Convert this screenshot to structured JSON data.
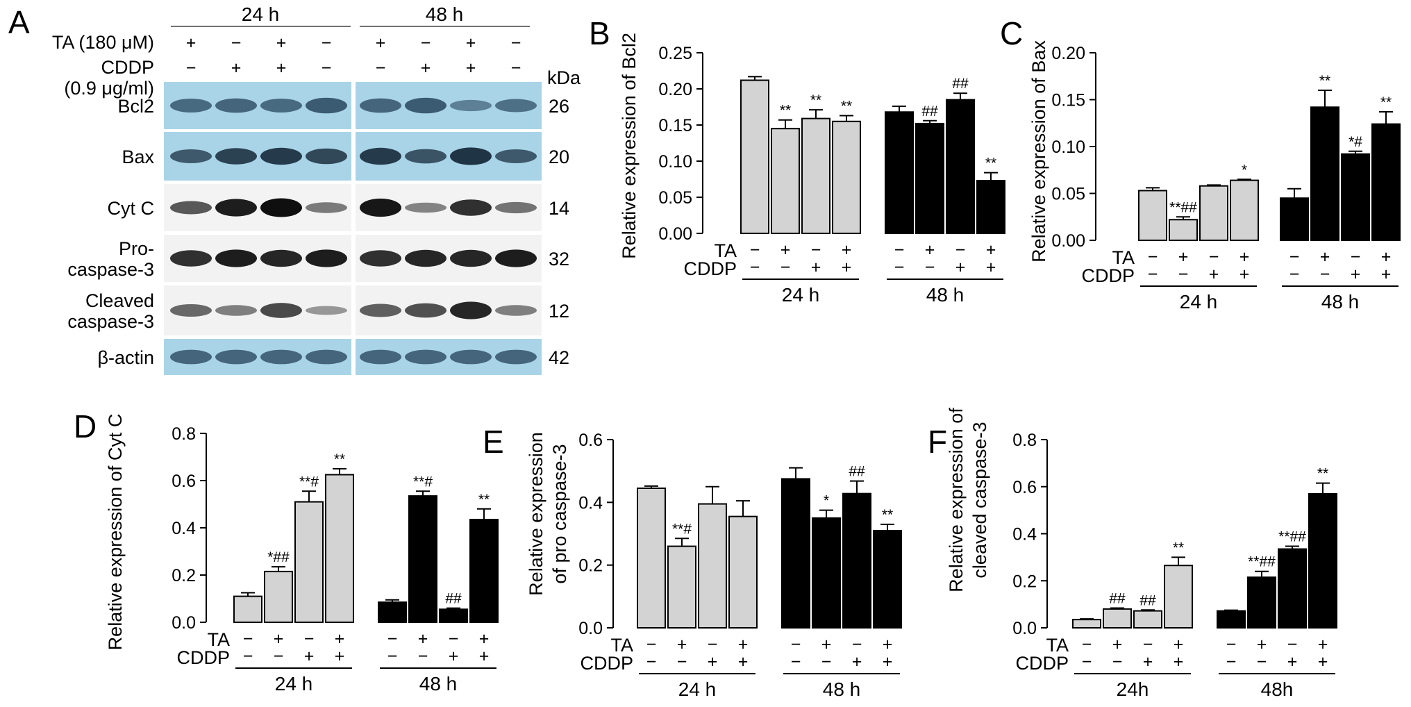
{
  "figure": {
    "panel_letters": [
      "A",
      "B",
      "C",
      "D",
      "E",
      "F"
    ]
  },
  "blot": {
    "letter": "A",
    "time_labels": [
      "24 h",
      "48 h"
    ],
    "ta_label": "TA (180 μM)",
    "cddp_label": "CDDP",
    "cddp_dose": "(0.9 μg/ml)",
    "kda_label": "kDa",
    "ta_signs": [
      "+",
      "−",
      "+",
      "−",
      "+",
      "−",
      "+",
      "−"
    ],
    "cddp_signs": [
      "−",
      "+",
      "+",
      "−",
      "−",
      "+",
      "+",
      "−"
    ],
    "rows": [
      {
        "label": "Bcl2",
        "kda": "26",
        "bg": "#a9d4e8",
        "band": "#1d3a52",
        "intensity": [
          0.55,
          0.6,
          0.55,
          0.7,
          0.6,
          0.7,
          0.35,
          0.5
        ]
      },
      {
        "label": "Bax",
        "kda": "20",
        "bg": "#a9d4e8",
        "band": "#0f2232",
        "intensity": [
          0.55,
          0.75,
          0.8,
          0.7,
          0.8,
          0.6,
          0.85,
          0.55
        ]
      },
      {
        "label": "Cyt C",
        "kda": "14",
        "bg": "#f3f3f3",
        "band": "#050505",
        "intensity": [
          0.5,
          0.85,
          0.95,
          0.3,
          0.9,
          0.25,
          0.75,
          0.35
        ]
      },
      {
        "label": "Pro-\ncaspase-3",
        "kda": "32",
        "bg": "#f2f2f2",
        "band": "#050505",
        "intensity": [
          0.75,
          0.85,
          0.8,
          0.85,
          0.75,
          0.8,
          0.8,
          0.85
        ]
      },
      {
        "label": "Cleaved\ncaspase-3",
        "kda": "12",
        "bg": "#f2f2f2",
        "band": "#101010",
        "intensity": [
          0.45,
          0.3,
          0.65,
          0.15,
          0.5,
          0.6,
          0.85,
          0.3
        ]
      },
      {
        "label": "β-actin",
        "kda": "42",
        "bg": "#a9d4e8",
        "band": "#1d3a52",
        "intensity": [
          0.6,
          0.6,
          0.6,
          0.6,
          0.6,
          0.6,
          0.6,
          0.6
        ]
      }
    ]
  },
  "chart_data": [
    {
      "panel": "B",
      "type": "bar",
      "ylabel": "Relative expression of Bcl2",
      "ylim": [
        0,
        0.25
      ],
      "yticks": [
        "0.00",
        "0.05",
        "0.10",
        "0.15",
        "0.20",
        "0.25"
      ],
      "ta_label": "TA",
      "cddp_label": "CDDP",
      "ta_signs": [
        "−",
        "+",
        "−",
        "+"
      ],
      "cddp_signs": [
        "−",
        "−",
        "+",
        "+"
      ],
      "groups": [
        {
          "name": "24 h",
          "color": "#d3d3d3",
          "values": [
            0.212,
            0.145,
            0.159,
            0.155
          ],
          "errors": [
            0.005,
            0.012,
            0.012,
            0.008
          ],
          "sig": [
            "",
            "**",
            "**",
            "**"
          ]
        },
        {
          "name": "48 h",
          "color": "#000000",
          "values": [
            0.168,
            0.152,
            0.185,
            0.073
          ],
          "errors": [
            0.008,
            0.004,
            0.009,
            0.011
          ],
          "sig": [
            "",
            "##",
            "##",
            "**"
          ]
        }
      ]
    },
    {
      "panel": "C",
      "type": "bar",
      "ylabel": "Relative expression of Bax",
      "ylim": [
        0,
        0.2
      ],
      "yticks": [
        "0.00",
        "0.05",
        "0.10",
        "0.15",
        "0.20"
      ],
      "ta_label": "TA",
      "cddp_label": "CDDP",
      "ta_signs": [
        "−",
        "+",
        "−",
        "+"
      ],
      "cddp_signs": [
        "−",
        "−",
        "+",
        "+"
      ],
      "groups": [
        {
          "name": "24 h",
          "color": "#d3d3d3",
          "values": [
            0.053,
            0.022,
            0.058,
            0.064
          ],
          "errors": [
            0.003,
            0.003,
            0.001,
            0.001
          ],
          "sig": [
            "",
            "**##",
            "",
            "*"
          ]
        },
        {
          "name": "48 h",
          "color": "#000000",
          "values": [
            0.045,
            0.142,
            0.092,
            0.124
          ],
          "errors": [
            0.01,
            0.018,
            0.003,
            0.013
          ],
          "sig": [
            "",
            "**",
            "*#",
            "**"
          ]
        }
      ]
    },
    {
      "panel": "D",
      "type": "bar",
      "ylabel": "Relative expression of Cyt C",
      "ylim": [
        0,
        0.8
      ],
      "yticks": [
        "0.0",
        "0.2",
        "0.4",
        "0.6",
        "0.8"
      ],
      "ta_label": "TA",
      "cddp_label": "CDDP",
      "ta_signs": [
        "−",
        "+",
        "−",
        "+"
      ],
      "cddp_signs": [
        "−",
        "−",
        "+",
        "+"
      ],
      "groups": [
        {
          "name": "24 h",
          "color": "#d3d3d3",
          "values": [
            0.11,
            0.215,
            0.51,
            0.625
          ],
          "errors": [
            0.015,
            0.02,
            0.045,
            0.025
          ],
          "sig": [
            "",
            "*##",
            "**#",
            "**"
          ]
        },
        {
          "name": "48 h",
          "color": "#000000",
          "values": [
            0.085,
            0.535,
            0.055,
            0.435
          ],
          "errors": [
            0.01,
            0.02,
            0.005,
            0.045
          ],
          "sig": [
            "",
            "**#",
            "##",
            "**"
          ]
        }
      ]
    },
    {
      "panel": "E",
      "type": "bar",
      "ylabel": "Relative expression\nof pro caspase-3",
      "ylim": [
        0,
        0.6
      ],
      "yticks": [
        "0.0",
        "0.2",
        "0.4",
        "0.6"
      ],
      "ta_label": "TA",
      "cddp_label": "CDDP",
      "ta_signs": [
        "−",
        "+",
        "−",
        "+"
      ],
      "cddp_signs": [
        "−",
        "−",
        "+",
        "+"
      ],
      "groups": [
        {
          "name": "24 h",
          "color": "#d3d3d3",
          "values": [
            0.445,
            0.26,
            0.395,
            0.355
          ],
          "errors": [
            0.007,
            0.025,
            0.055,
            0.05
          ],
          "sig": [
            "",
            "**#",
            "",
            ""
          ]
        },
        {
          "name": "48 h",
          "color": "#000000",
          "values": [
            0.475,
            0.35,
            0.428,
            0.31
          ],
          "errors": [
            0.035,
            0.025,
            0.04,
            0.02
          ],
          "sig": [
            "",
            "*",
            "##",
            "**"
          ]
        }
      ]
    },
    {
      "panel": "F",
      "type": "bar",
      "ylabel": "Relative expression of\ncleaved caspase-3",
      "ylim": [
        0,
        0.8
      ],
      "yticks": [
        "0.0",
        "0.2",
        "0.4",
        "0.6",
        "0.8"
      ],
      "ta_label": "TA",
      "cddp_label": "CDDP",
      "ta_signs": [
        "−",
        "+",
        "−",
        "+"
      ],
      "cddp_signs": [
        "−",
        "−",
        "+",
        "+"
      ],
      "groups": [
        {
          "name": "24h",
          "color": "#d3d3d3",
          "values": [
            0.035,
            0.08,
            0.072,
            0.265
          ],
          "errors": [
            0.003,
            0.004,
            0.004,
            0.035
          ],
          "sig": [
            "",
            "##",
            "##",
            "**"
          ]
        },
        {
          "name": "48h",
          "color": "#000000",
          "values": [
            0.072,
            0.215,
            0.335,
            0.57
          ],
          "errors": [
            0.003,
            0.025,
            0.012,
            0.045
          ],
          "sig": [
            "",
            "**##",
            "**##",
            "**"
          ]
        }
      ]
    }
  ]
}
